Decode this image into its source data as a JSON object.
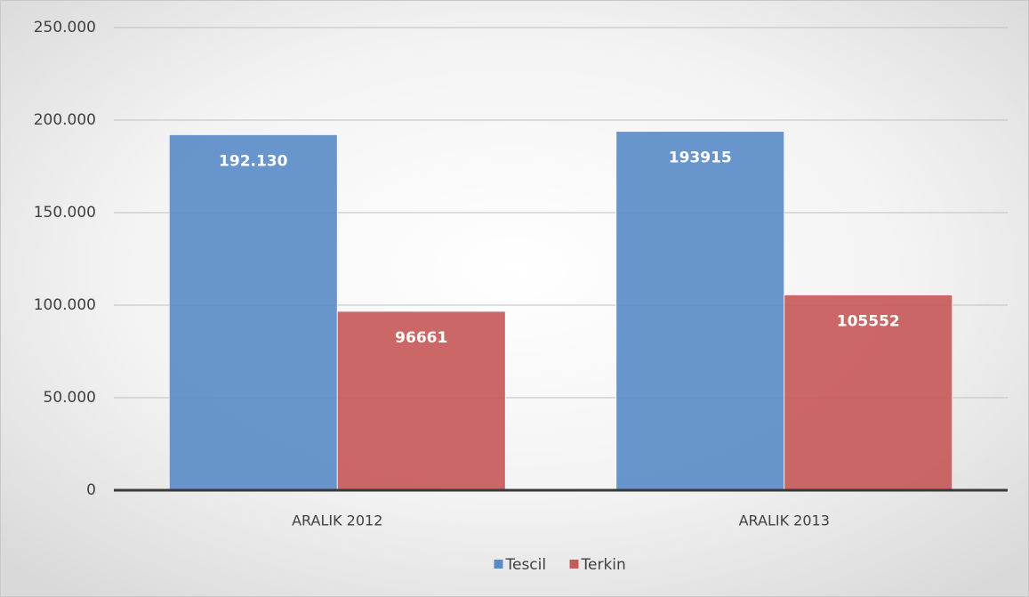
{
  "chart_data": {
    "type": "bar",
    "categories": [
      "ARALIK 2012",
      "ARALIK 2013"
    ],
    "series": [
      {
        "name": "Tescil",
        "color": "#5b8cc8",
        "values": [
          192130,
          193915
        ],
        "value_labels": [
          "192.130",
          "193915"
        ]
      },
      {
        "name": "Terkin",
        "color": "#c85a5a",
        "values": [
          96661,
          105552
        ]
      }
    ],
    "ylim": [
      0,
      250000
    ],
    "yticks": [
      0,
      {
        "value": 50000,
        "label": "50.000"
      },
      {
        "value": 100000,
        "label": "100.000"
      },
      {
        "value": 150000,
        "label": "150.000"
      },
      {
        "value": 200000,
        "label": "200.000"
      },
      {
        "value": 250000,
        "label": "250.000"
      }
    ],
    "grid": true,
    "legend": "bottom"
  }
}
